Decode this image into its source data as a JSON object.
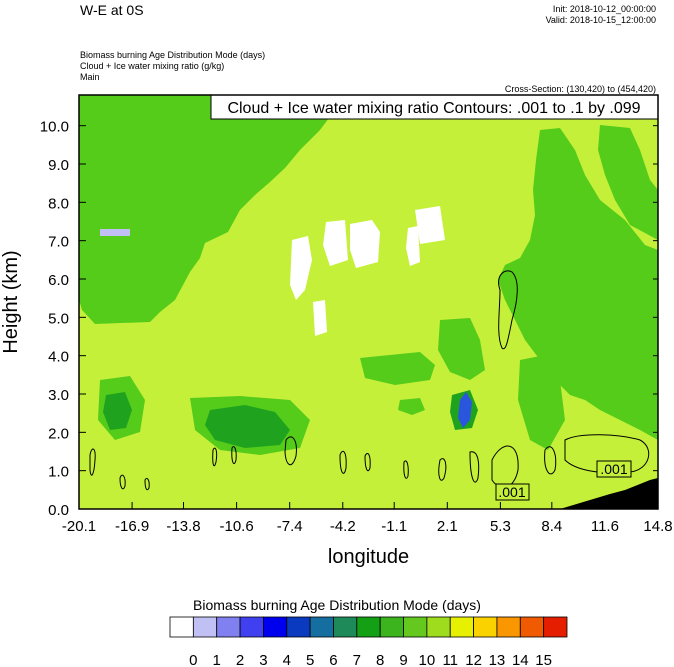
{
  "header": {
    "title": "W-E at 0S",
    "init": "Init: 2018-10-12_00:00:00",
    "valid": "Valid: 2018-10-15_12:00:00",
    "subtitle_lines": [
      "Biomass burning Age Distribution Mode   (days)",
      "Cloud + Ice water mixing ratio   (g/kg)",
      "Main"
    ],
    "cross_section": "Cross-Section: (130,420) to (454,420)"
  },
  "contour_info": "Cloud + Ice water mixing ratio Contours: .001 to .1 by .099",
  "colors": {
    "background_field": "#c5f03a",
    "green_region": "#55cc1a",
    "dark_green": "#1fa31f",
    "blue": "#2a55dd",
    "lavender": "#c0c0f5",
    "terrain": "#000000"
  },
  "chart_data": {
    "type": "heatmap",
    "xlabel": "longitude",
    "ylabel": "Height (km)",
    "x_ticks": [
      "-20.1",
      "-16.9",
      "-13.8",
      "-10.6",
      "-7.4",
      "-4.2",
      "-1.1",
      "2.1",
      "5.3",
      "8.4",
      "11.6",
      "14.8"
    ],
    "xlim": [
      -20.1,
      14.8
    ],
    "y_ticks": [
      "0.0",
      "1.0",
      "2.0",
      "3.0",
      "4.0",
      "5.0",
      "6.0",
      "7.0",
      "8.0",
      "9.0",
      "10.0"
    ],
    "ylim": [
      0,
      10.8
    ],
    "contour_labels": [
      ".001",
      ".001"
    ],
    "colorbar": {
      "title": "Biomass burning Age Distribution Mode  (days)",
      "labels": [
        "0",
        "1",
        "2",
        "3",
        "4",
        "5",
        "6",
        "7",
        "8",
        "9",
        "10",
        "11",
        "12",
        "13",
        "14",
        "15"
      ],
      "colors": [
        "#ffffff",
        "#c0c0f5",
        "#8080f0",
        "#4040f0",
        "#0000ee",
        "#0a3ac0",
        "#146ea0",
        "#1e8a5a",
        "#14a014",
        "#3cb41e",
        "#64c81e",
        "#a0dc1e",
        "#e6f000",
        "#fad200",
        "#fa9600",
        "#f05a00",
        "#e61e00"
      ]
    }
  }
}
